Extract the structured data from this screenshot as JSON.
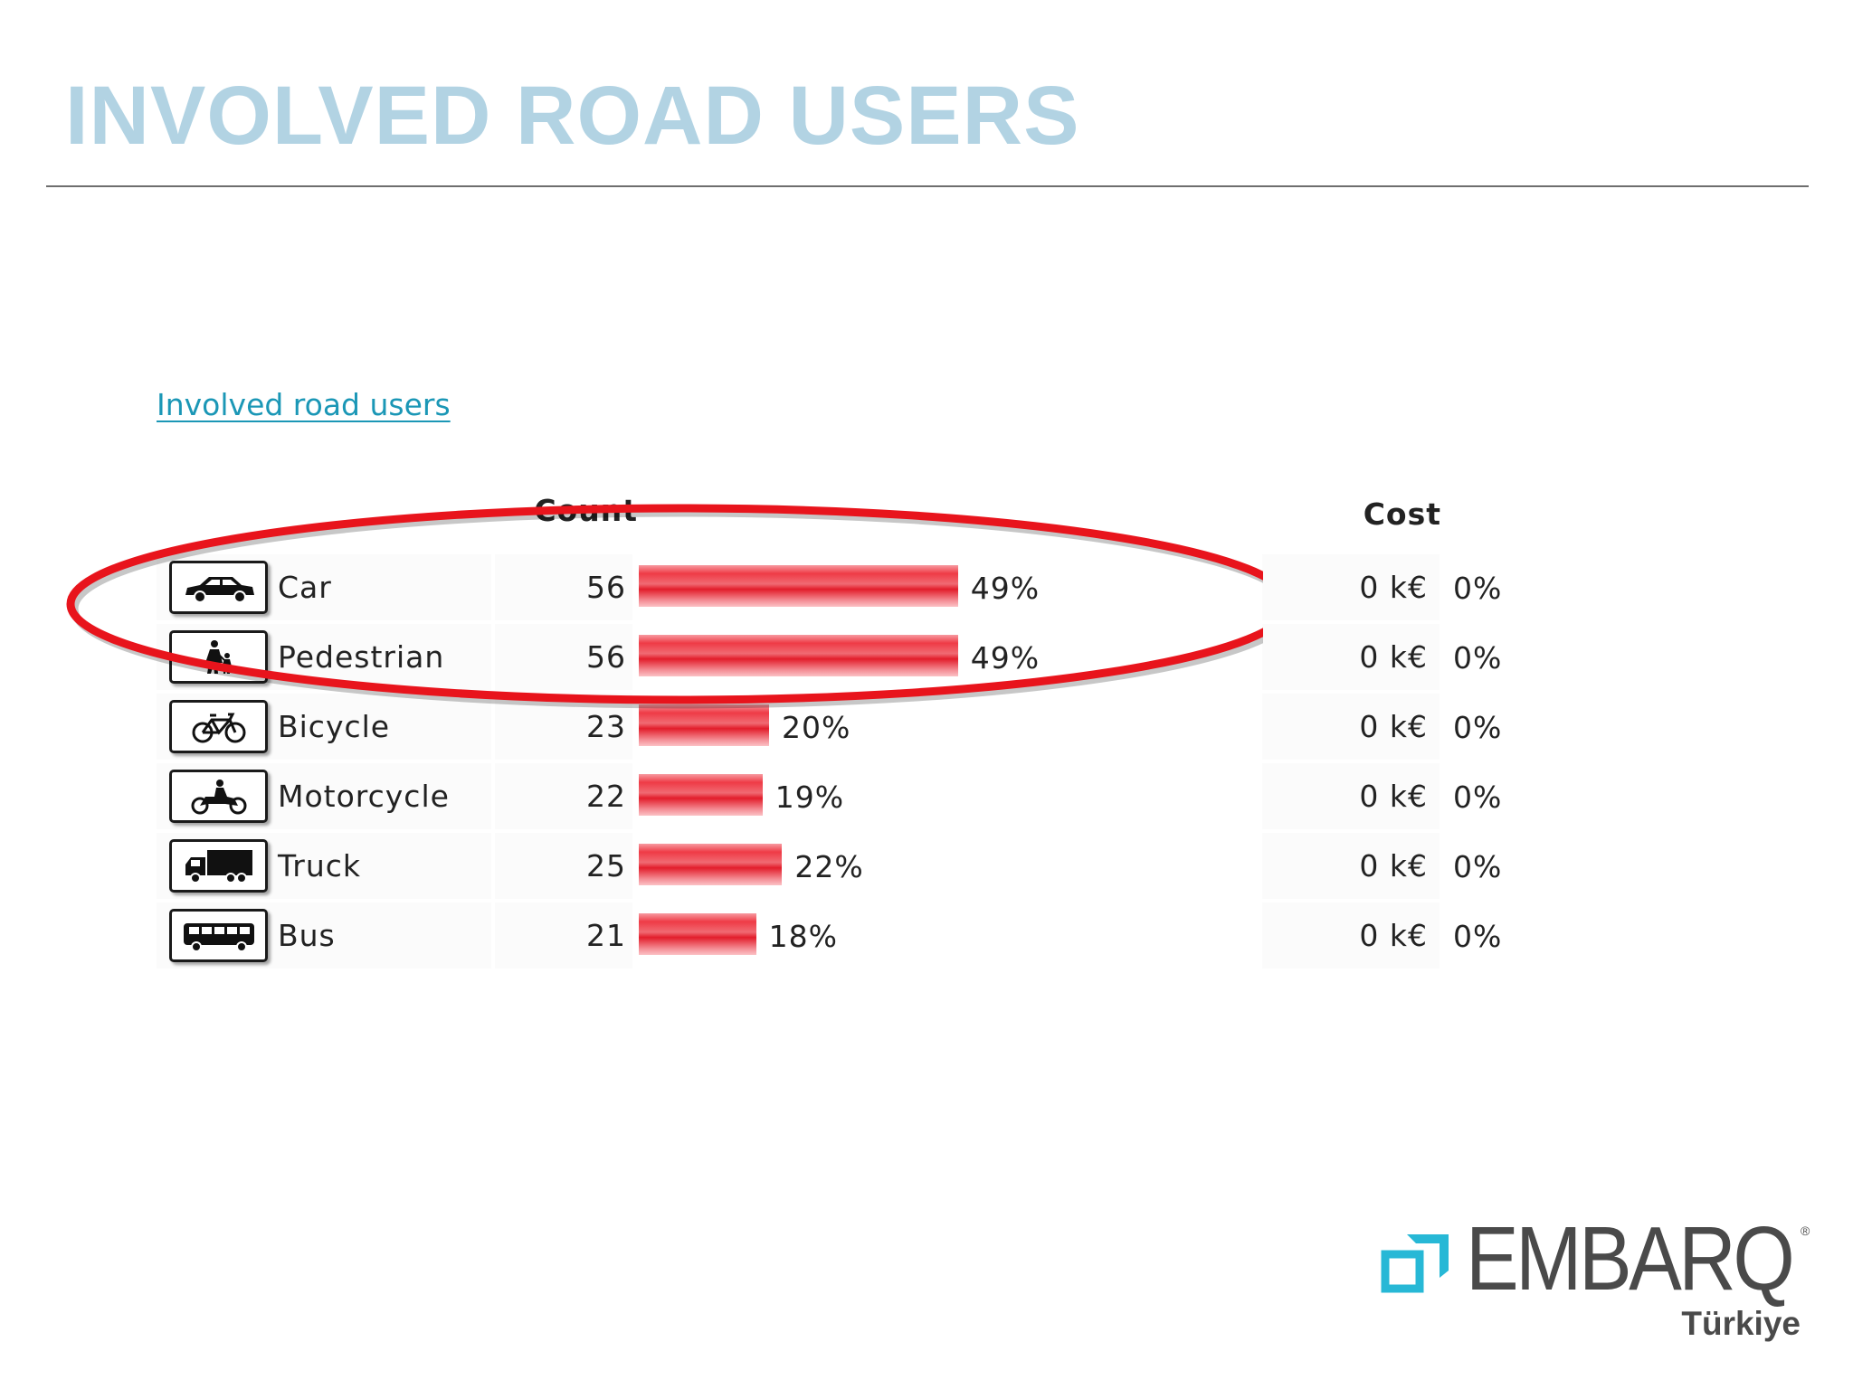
{
  "slide": {
    "title": "INVOLVED ROAD USERS"
  },
  "report": {
    "link_label": "Involved road users",
    "columns": {
      "count": "Count",
      "cost": "Cost"
    },
    "rows": [
      {
        "name": "Car",
        "icon": "car-icon",
        "count": "56",
        "share": 49,
        "share_label": "49%",
        "cost": "0 k€",
        "cost_share": "0%"
      },
      {
        "name": "Pedestrian",
        "icon": "pedestrian-icon",
        "count": "56",
        "share": 49,
        "share_label": "49%",
        "cost": "0 k€",
        "cost_share": "0%"
      },
      {
        "name": "Bicycle",
        "icon": "bicycle-icon",
        "count": "23",
        "share": 20,
        "share_label": "20%",
        "cost": "0 k€",
        "cost_share": "0%"
      },
      {
        "name": "Motorcycle",
        "icon": "motorcycle-icon",
        "count": "22",
        "share": 19,
        "share_label": "19%",
        "cost": "0 k€",
        "cost_share": "0%"
      },
      {
        "name": "Truck",
        "icon": "truck-icon",
        "count": "25",
        "share": 22,
        "share_label": "22%",
        "cost": "0 k€",
        "cost_share": "0%"
      },
      {
        "name": "Bus",
        "icon": "bus-icon",
        "count": "21",
        "share": 18,
        "share_label": "18%",
        "cost": "0 k€",
        "cost_share": "0%"
      }
    ],
    "highlighted_rows": [
      "Car",
      "Pedestrian"
    ]
  },
  "brand": {
    "name": "EMBARQ",
    "registered": "®",
    "region": "Türkiye",
    "accent_color": "#27b8d6"
  }
}
